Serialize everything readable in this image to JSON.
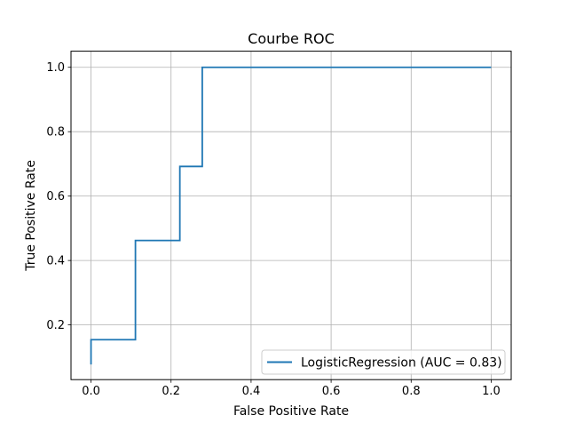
{
  "chart_data": {
    "type": "line",
    "title": "Courbe ROC",
    "xlabel": "False Positive Rate",
    "ylabel": "True Positive Rate",
    "xlim": [
      -0.05,
      1.05
    ],
    "ylim": [
      0.03,
      1.05
    ],
    "xticks": [
      0.0,
      0.2,
      0.4,
      0.6,
      0.8,
      1.0
    ],
    "xtick_labels": [
      "0.0",
      "0.2",
      "0.4",
      "0.6",
      "0.8",
      "1.0"
    ],
    "yticks": [
      0.2,
      0.4,
      0.6,
      0.8,
      1.0
    ],
    "ytick_labels": [
      "0.2",
      "0.4",
      "0.6",
      "0.8",
      "1.0"
    ],
    "grid": true,
    "legend_position": "lower-right",
    "series": [
      {
        "name": "LogisticRegression (AUC = 0.83)",
        "color": "#1f77b4",
        "x": [
          0.0,
          0.0,
          0.111,
          0.111,
          0.222,
          0.222,
          0.278,
          0.278,
          1.0
        ],
        "y": [
          0.077,
          0.154,
          0.154,
          0.462,
          0.462,
          0.692,
          0.692,
          1.0,
          1.0
        ]
      }
    ]
  }
}
